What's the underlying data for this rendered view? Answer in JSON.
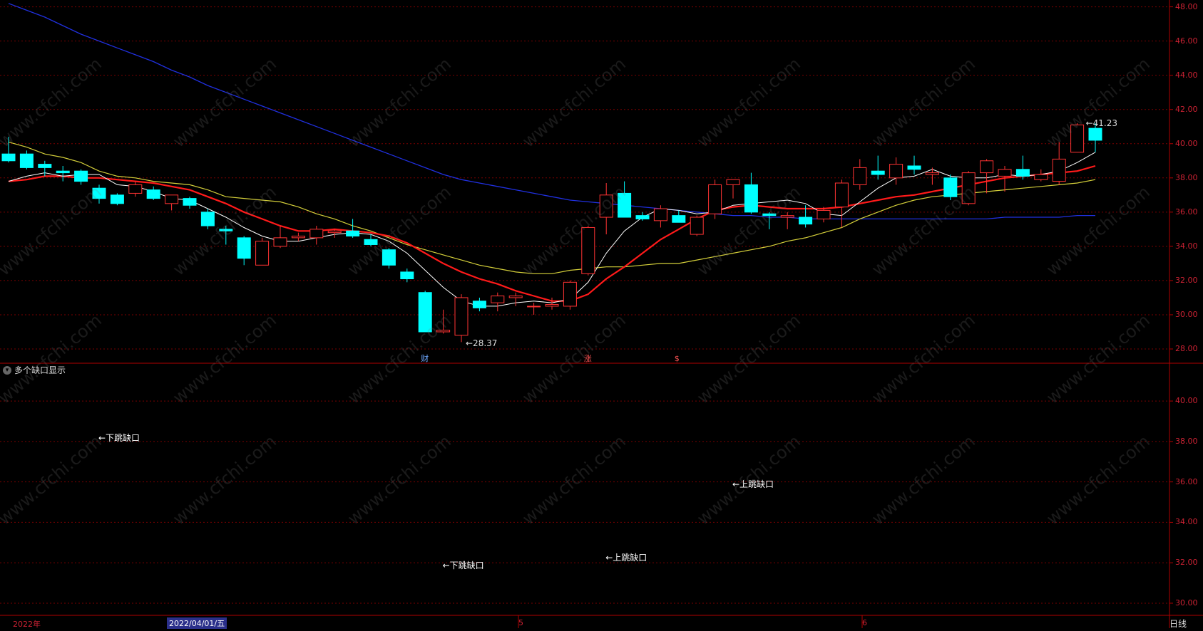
{
  "indicator_label": "多个缺口显示",
  "period": "日线",
  "watermark": "www.cfchi.com",
  "x_axis": {
    "year_label": "2022年",
    "cursor_date": "2022/04/01/五",
    "month_labels": [
      "5",
      "6"
    ]
  },
  "price_axis_ticks": [
    "48.00",
    "46.00",
    "44.00",
    "42.00",
    "40.00",
    "38.00",
    "36.00",
    "34.00",
    "32.00",
    "30.00",
    "28.00"
  ],
  "indicator_axis_ticks": [
    "40.00",
    "38.00",
    "36.00",
    "34.00",
    "32.00",
    "30.00"
  ],
  "markers": [
    {
      "text": "财",
      "color": "#6ea8ff"
    },
    {
      "text": "涨",
      "color": "#ff5555"
    },
    {
      "text": "$",
      "color": "#ff5555"
    }
  ],
  "annotations": {
    "low_label": "←28.37",
    "high_label": "←41.23"
  },
  "gap_labels": [
    "←下跳缺口",
    "←下跳缺口",
    "←上跳缺口",
    "←上跳缺口"
  ],
  "colors": {
    "up_candle": "#ff3333",
    "down_candle": "#00ffff",
    "ma5": "#ffffff",
    "ma10": "#ff1a1a",
    "ma20": "#d4cf3a",
    "ma60": "#2030e0",
    "grid": "#7a0000",
    "axis": "#b00000"
  },
  "chart_data": {
    "type": "candlestick",
    "ylim": [
      27.5,
      48.4
    ],
    "candles": [
      {
        "o": 39.4,
        "h": 40.4,
        "l": 38.9,
        "c": 39.0
      },
      {
        "o": 39.4,
        "h": 39.6,
        "l": 38.5,
        "c": 38.6
      },
      {
        "o": 38.8,
        "h": 39.0,
        "l": 38.1,
        "c": 38.6
      },
      {
        "o": 38.4,
        "h": 38.7,
        "l": 37.8,
        "c": 38.3
      },
      {
        "o": 38.4,
        "h": 38.5,
        "l": 37.6,
        "c": 37.8
      },
      {
        "o": 37.4,
        "h": 37.6,
        "l": 36.5,
        "c": 36.8
      },
      {
        "o": 37.0,
        "h": 37.1,
        "l": 36.4,
        "c": 36.5
      },
      {
        "o": 37.1,
        "h": 37.8,
        "l": 36.9,
        "c": 37.6
      },
      {
        "o": 37.3,
        "h": 37.5,
        "l": 36.7,
        "c": 36.8
      },
      {
        "o": 36.5,
        "h": 37.0,
        "l": 36.1,
        "c": 37.0
      },
      {
        "o": 36.8,
        "h": 36.9,
        "l": 36.2,
        "c": 36.4
      },
      {
        "o": 36.0,
        "h": 36.2,
        "l": 35.0,
        "c": 35.2
      },
      {
        "o": 35.0,
        "h": 35.2,
        "l": 34.1,
        "c": 34.9
      },
      {
        "o": 34.5,
        "h": 34.6,
        "l": 32.9,
        "c": 33.3
      },
      {
        "o": 32.9,
        "h": 34.5,
        "l": 32.9,
        "c": 34.3
      },
      {
        "o": 34.0,
        "h": 35.2,
        "l": 33.9,
        "c": 34.5
      },
      {
        "o": 34.5,
        "h": 34.8,
        "l": 34.3,
        "c": 34.6
      },
      {
        "o": 34.5,
        "h": 35.2,
        "l": 34.1,
        "c": 35.0
      },
      {
        "o": 34.8,
        "h": 35.0,
        "l": 34.5,
        "c": 34.9
      },
      {
        "o": 34.9,
        "h": 35.6,
        "l": 34.5,
        "c": 34.6
      },
      {
        "o": 34.4,
        "h": 34.7,
        "l": 34.0,
        "c": 34.1
      },
      {
        "o": 33.8,
        "h": 33.9,
        "l": 32.7,
        "c": 32.9
      },
      {
        "o": 32.5,
        "h": 32.7,
        "l": 31.9,
        "c": 32.1
      },
      {
        "o": 31.3,
        "h": 31.4,
        "l": 29.0,
        "c": 29.0
      },
      {
        "o": 29.0,
        "h": 30.3,
        "l": 28.9,
        "c": 29.1
      },
      {
        "o": 28.8,
        "h": 31.2,
        "l": 28.4,
        "c": 31.0
      },
      {
        "o": 30.8,
        "h": 31.0,
        "l": 30.2,
        "c": 30.4
      },
      {
        "o": 30.7,
        "h": 31.3,
        "l": 30.2,
        "c": 31.1
      },
      {
        "o": 31.0,
        "h": 31.3,
        "l": 30.5,
        "c": 31.1
      },
      {
        "o": 30.5,
        "h": 30.7,
        "l": 30.0,
        "c": 30.5
      },
      {
        "o": 30.5,
        "h": 31.0,
        "l": 30.3,
        "c": 30.6
      },
      {
        "o": 30.5,
        "h": 32.0,
        "l": 30.3,
        "c": 31.9
      },
      {
        "o": 32.4,
        "h": 35.2,
        "l": 32.3,
        "c": 35.1
      },
      {
        "o": 35.7,
        "h": 37.7,
        "l": 34.7,
        "c": 37.0
      },
      {
        "o": 37.1,
        "h": 37.8,
        "l": 35.7,
        "c": 35.7
      },
      {
        "o": 35.8,
        "h": 36.0,
        "l": 35.5,
        "c": 35.6
      },
      {
        "o": 35.5,
        "h": 36.4,
        "l": 35.1,
        "c": 36.2
      },
      {
        "o": 35.8,
        "h": 36.1,
        "l": 35.4,
        "c": 35.4
      },
      {
        "o": 34.7,
        "h": 35.8,
        "l": 34.6,
        "c": 35.7
      },
      {
        "o": 35.9,
        "h": 37.9,
        "l": 35.6,
        "c": 37.6
      },
      {
        "o": 37.6,
        "h": 37.9,
        "l": 36.8,
        "c": 37.9
      },
      {
        "o": 37.6,
        "h": 38.3,
        "l": 35.9,
        "c": 36.0
      },
      {
        "o": 35.9,
        "h": 36.0,
        "l": 35.0,
        "c": 35.8
      },
      {
        "o": 35.7,
        "h": 36.0,
        "l": 35.0,
        "c": 35.8
      },
      {
        "o": 35.7,
        "h": 36.4,
        "l": 35.1,
        "c": 35.3
      },
      {
        "o": 35.6,
        "h": 36.3,
        "l": 35.4,
        "c": 36.1
      },
      {
        "o": 36.3,
        "h": 37.9,
        "l": 35.1,
        "c": 37.7
      },
      {
        "o": 37.6,
        "h": 39.1,
        "l": 37.3,
        "c": 38.6
      },
      {
        "o": 38.4,
        "h": 39.3,
        "l": 37.9,
        "c": 38.2
      },
      {
        "o": 38.0,
        "h": 39.2,
        "l": 37.6,
        "c": 38.8
      },
      {
        "o": 38.7,
        "h": 39.3,
        "l": 38.2,
        "c": 38.5
      },
      {
        "o": 38.2,
        "h": 38.6,
        "l": 37.6,
        "c": 38.3
      },
      {
        "o": 38.0,
        "h": 38.2,
        "l": 36.7,
        "c": 36.9
      },
      {
        "o": 36.5,
        "h": 38.4,
        "l": 36.4,
        "c": 38.3
      },
      {
        "o": 38.3,
        "h": 39.1,
        "l": 37.1,
        "c": 39.0
      },
      {
        "o": 38.1,
        "h": 38.7,
        "l": 37.2,
        "c": 38.5
      },
      {
        "o": 38.5,
        "h": 39.3,
        "l": 37.9,
        "c": 38.1
      },
      {
        "o": 37.9,
        "h": 38.5,
        "l": 37.8,
        "c": 38.2
      },
      {
        "o": 37.8,
        "h": 40.1,
        "l": 37.6,
        "c": 39.1
      },
      {
        "o": 39.5,
        "h": 41.2,
        "l": 39.5,
        "c": 41.1
      },
      {
        "o": 40.9,
        "h": 41.2,
        "l": 39.5,
        "c": 40.2
      }
    ],
    "ma5": [
      37.8,
      38.1,
      38.3,
      38.1,
      38.2,
      38.2,
      37.6,
      37.5,
      37.2,
      36.8,
      36.7,
      36.2,
      35.7,
      35.1,
      34.6,
      34.3,
      34.3,
      34.5,
      34.7,
      34.8,
      34.7,
      34.3,
      33.6,
      32.6,
      31.6,
      30.8,
      30.5,
      30.5,
      30.7,
      30.8,
      30.7,
      30.9,
      31.9,
      33.6,
      34.9,
      35.7,
      36.2,
      36.1,
      35.9,
      36.0,
      36.4,
      36.5,
      36.6,
      36.7,
      36.5,
      35.9,
      35.8,
      36.6,
      37.4,
      38.0,
      38.1,
      38.5,
      38.1,
      38.0,
      38.0,
      38.2,
      38.1,
      38.2,
      38.4,
      38.9,
      39.5
    ],
    "ma10": [
      37.8,
      37.9,
      38.1,
      38.1,
      38.0,
      38.0,
      37.9,
      37.8,
      37.7,
      37.5,
      37.3,
      36.9,
      36.5,
      36.0,
      35.6,
      35.2,
      34.9,
      34.9,
      35.0,
      34.9,
      34.8,
      34.6,
      34.2,
      33.6,
      33.0,
      32.5,
      32.1,
      31.8,
      31.4,
      31.1,
      30.8,
      30.8,
      31.2,
      32.1,
      32.8,
      33.6,
      34.4,
      35.0,
      35.6,
      36.1,
      36.3,
      36.4,
      36.3,
      36.2,
      36.2,
      36.2,
      36.3,
      36.5,
      36.7,
      36.9,
      37.0,
      37.2,
      37.4,
      37.6,
      37.8,
      38.0,
      38.1,
      38.2,
      38.3,
      38.4,
      38.7
    ],
    "ma20": [
      40.1,
      39.8,
      39.4,
      39.2,
      38.9,
      38.4,
      38.1,
      38.0,
      37.8,
      37.7,
      37.6,
      37.3,
      36.9,
      36.8,
      36.7,
      36.6,
      36.3,
      35.9,
      35.6,
      35.2,
      34.9,
      34.5,
      34.1,
      33.8,
      33.5,
      33.2,
      32.9,
      32.7,
      32.5,
      32.4,
      32.4,
      32.6,
      32.7,
      32.8,
      32.8,
      32.9,
      33.0,
      33.0,
      33.2,
      33.4,
      33.6,
      33.8,
      34.0,
      34.3,
      34.5,
      34.8,
      35.1,
      35.6,
      36.0,
      36.4,
      36.7,
      36.9,
      37.0,
      37.1,
      37.2,
      37.3,
      37.4,
      37.5,
      37.6,
      37.7,
      37.9
    ],
    "ma60": [
      48.2,
      47.8,
      47.4,
      46.9,
      46.4,
      46.0,
      45.6,
      45.2,
      44.8,
      44.3,
      43.9,
      43.4,
      43.0,
      42.6,
      42.2,
      41.8,
      41.4,
      41.0,
      40.6,
      40.2,
      39.8,
      39.4,
      39.0,
      38.6,
      38.2,
      37.9,
      37.7,
      37.5,
      37.3,
      37.1,
      36.9,
      36.7,
      36.6,
      36.5,
      36.4,
      36.3,
      36.2,
      36.1,
      36.0,
      35.9,
      35.8,
      35.8,
      35.7,
      35.7,
      35.6,
      35.6,
      35.6,
      35.6,
      35.6,
      35.6,
      35.6,
      35.6,
      35.6,
      35.6,
      35.6,
      35.7,
      35.7,
      35.7,
      35.7,
      35.8,
      35.8
    ],
    "gaps": [
      {
        "label_index": 0,
        "level": 38.2,
        "candle": 5
      },
      {
        "label_index": 1,
        "level": 31.9,
        "candle": 24
      },
      {
        "label_index": 2,
        "level": 32.3,
        "candle": 33
      },
      {
        "label_index": 3,
        "level": 35.9,
        "candle": 40
      }
    ]
  }
}
